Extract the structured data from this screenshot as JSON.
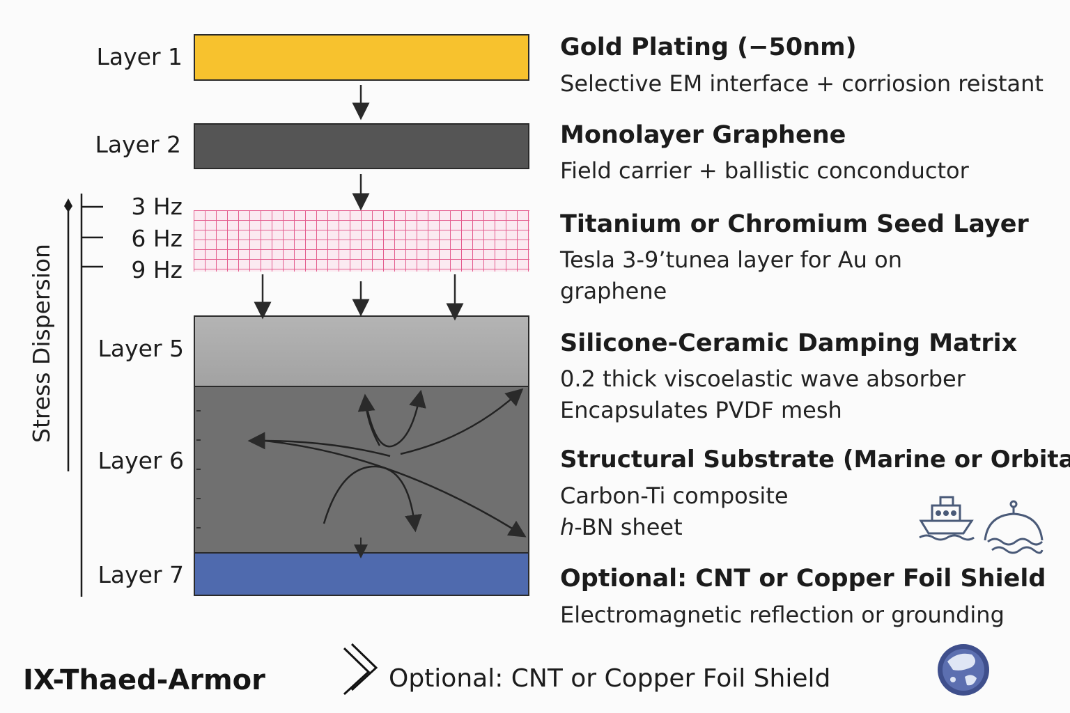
{
  "layers": {
    "layer1": "Layer 1",
    "layer2": "Layer 2",
    "layer5": "Layer 5",
    "layer6": "Layer 6",
    "layer7": "Layer 7"
  },
  "frequencies": [
    "3 Hz",
    "6 Hz",
    "9 Hz"
  ],
  "axis_label": "Stress Dispersion",
  "descriptions": {
    "gold": {
      "title": "Gold Plating (−50nm)",
      "lines": [
        "Selective EM interface + corriosion reistant"
      ]
    },
    "graphene": {
      "title": "Monolayer Graphene",
      "lines": [
        "Field carrier + ballistic conconductor"
      ]
    },
    "seed": {
      "title": "Titanium or Chromium Seed Layer",
      "lines": [
        "Tesla 3-9’tunea layer for Au on",
        "graphene"
      ]
    },
    "damping": {
      "title": "Silicone-Ceramic Damping Matrix",
      "lines": [
        "0.2 thick viscoelastic wave absorber",
        "Encapsulates PVDF mesh"
      ]
    },
    "substrate": {
      "title": "Structural Substrate (Marine or Orbital)",
      "lines": [
        "Carbon-Ti composite"
      ],
      "italic_prefix": "h",
      "italic_rest": "-BN sheet"
    },
    "shield": {
      "title": "Optional: CNT or Copper Foil Shield",
      "lines": [
        "Electromagnetic reflection or grounding"
      ]
    }
  },
  "footer": {
    "title": "IX-Thaed-Armor",
    "caption": "Optional: CNT or Copper Foil Shield"
  },
  "icons": [
    "ship-icon",
    "orbital-buoy-icon",
    "chevron-icon",
    "globe-logo-icon"
  ],
  "colors": {
    "gold": "#f7c22e",
    "graphene": "#555555",
    "grid": "#e0407a",
    "damping": "#a8a8a8",
    "substrate": "#6e6e6e",
    "shield": "#4f6aae",
    "icon": "#4a5a78"
  }
}
